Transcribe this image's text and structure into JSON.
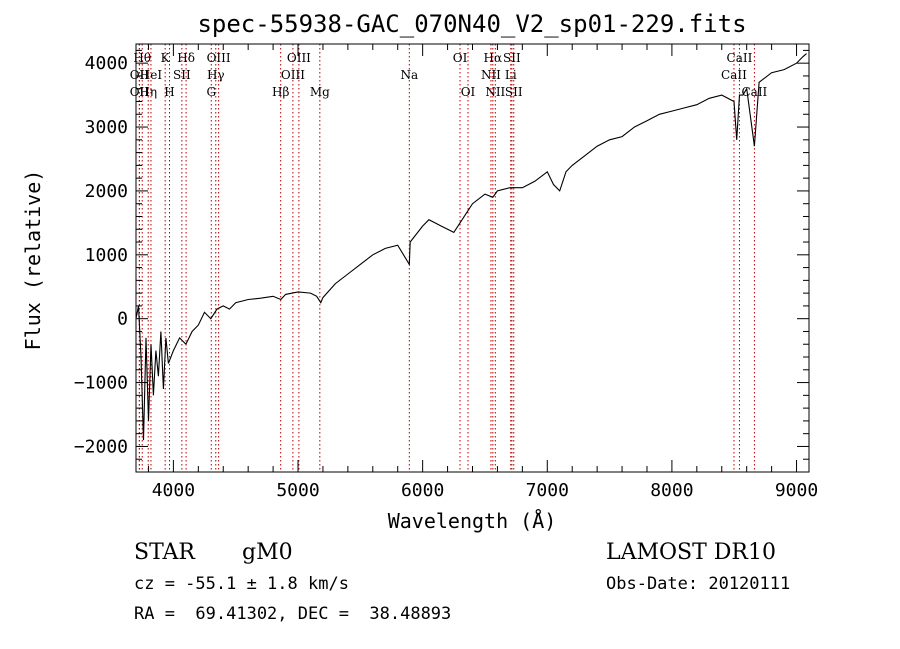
{
  "chart_data": {
    "type": "line",
    "title": "spec-55938-GAC_070N40_V2_sp01-229.fits",
    "xlabel": "Wavelength (Å)",
    "ylabel": "Flux (relative)",
    "xlim": [
      3700,
      9100
    ],
    "ylim": [
      -2400,
      4300
    ],
    "xticks": [
      4000,
      5000,
      6000,
      7000,
      8000,
      9000
    ],
    "yticks": [
      -2000,
      -1000,
      0,
      1000,
      2000,
      3000,
      4000
    ],
    "series": [
      {
        "x": [
          3700,
          3720,
          3740,
          3760,
          3780,
          3800,
          3820,
          3840,
          3860,
          3880,
          3900,
          3920,
          3940,
          3960,
          3980,
          4000,
          4050,
          4100,
          4150,
          4200,
          4250,
          4300,
          4350,
          4400,
          4450,
          4500,
          4600,
          4700,
          4800,
          4862,
          4900,
          5000,
          5100,
          5150,
          5183,
          5200,
          5300,
          5400,
          5500,
          5600,
          5700,
          5800,
          5893,
          5900,
          6000,
          6050,
          6100,
          6150,
          6200,
          6250,
          6300,
          6400,
          6500,
          6563,
          6600,
          6700,
          6800,
          6900,
          7000,
          7050,
          7100,
          7150,
          7200,
          7300,
          7400,
          7500,
          7600,
          7700,
          7800,
          7900,
          8000,
          8100,
          8200,
          8300,
          8400,
          8498,
          8520,
          8542,
          8570,
          8600,
          8662,
          8700,
          8800,
          8900,
          9000,
          9050,
          9080
        ],
        "y": [
          0,
          200,
          -600,
          -1900,
          -300,
          -1600,
          -400,
          -1200,
          -500,
          -900,
          -200,
          -1100,
          -300,
          -700,
          -600,
          -500,
          -300,
          -400,
          -200,
          -100,
          100,
          0,
          150,
          200,
          150,
          250,
          300,
          320,
          350,
          300,
          380,
          420,
          400,
          350,
          250,
          330,
          550,
          700,
          850,
          1000,
          1100,
          1150,
          850,
          1200,
          1450,
          1550,
          1500,
          1450,
          1400,
          1350,
          1500,
          1800,
          1950,
          1900,
          2000,
          2050,
          2050,
          2150,
          2300,
          2100,
          2000,
          2300,
          2400,
          2550,
          2700,
          2800,
          2850,
          3000,
          3100,
          3200,
          3250,
          3300,
          3350,
          3450,
          3500,
          3400,
          2800,
          3500,
          3500,
          3600,
          2700,
          3700,
          3850,
          3900,
          4000,
          4100,
          4150
        ]
      }
    ],
    "lines": [
      {
        "x": 3750,
        "label": "Hθ",
        "row": 0
      },
      {
        "x": 3727,
        "label": "OII",
        "row": 1
      },
      {
        "x": 3727,
        "label": "OII",
        "row": 2
      },
      {
        "x": 3798,
        "label": "Hη",
        "row": 2
      },
      {
        "x": 3820,
        "label": "HeI",
        "row": 1
      },
      {
        "x": 3934,
        "label": "K",
        "row": 0
      },
      {
        "x": 3969,
        "label": "H",
        "row": 2
      },
      {
        "x": 4068,
        "label": "SII",
        "row": 1
      },
      {
        "x": 4102,
        "label": "Hδ",
        "row": 0
      },
      {
        "x": 4304,
        "label": "G",
        "row": 2
      },
      {
        "x": 4340,
        "label": "Hγ",
        "row": 1
      },
      {
        "x": 4363,
        "label": "OIII",
        "row": 0
      },
      {
        "x": 4861,
        "label": "Hβ",
        "row": 2
      },
      {
        "x": 4959,
        "label": "OIII",
        "row": 1
      },
      {
        "x": 5007,
        "label": "OIII",
        "row": 0
      },
      {
        "x": 5175,
        "label": "Mg",
        "row": 2
      },
      {
        "x": 5893,
        "label": "Na",
        "row": 1
      },
      {
        "x": 6300,
        "label": "OI",
        "row": 0
      },
      {
        "x": 6364,
        "label": "OI",
        "row": 2
      },
      {
        "x": 6548,
        "label": "NII",
        "row": 1
      },
      {
        "x": 6563,
        "label": "Hα",
        "row": 0
      },
      {
        "x": 6583,
        "label": "NII",
        "row": 2
      },
      {
        "x": 6707,
        "label": "Li",
        "row": 1
      },
      {
        "x": 6716,
        "label": "SII",
        "row": 0
      },
      {
        "x": 6731,
        "label": "SII",
        "row": 2
      },
      {
        "x": 8498,
        "label": "CaII",
        "row": 1
      },
      {
        "x": 8542,
        "label": "CaII",
        "row": 0
      },
      {
        "x": 8662,
        "label": "CaII",
        "row": 2
      }
    ]
  },
  "info": {
    "object_type": "STAR",
    "subclass": "gM0",
    "survey": "LAMOST DR10",
    "redshift": "cz = -55.1 ± 1.8 km/s",
    "obs_date": "Obs-Date: 20120111",
    "coords": "RA =  69.41302, DEC =  38.48893"
  }
}
